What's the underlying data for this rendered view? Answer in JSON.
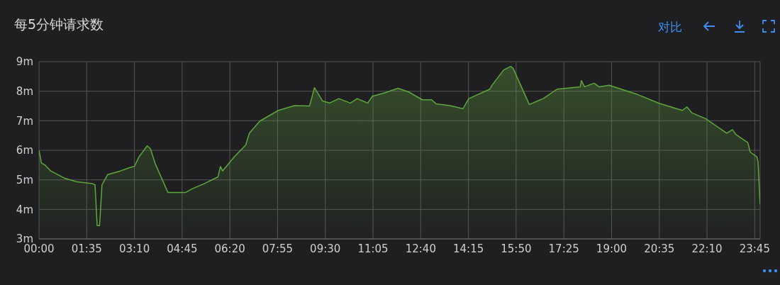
{
  "chart_data": {
    "type": "area",
    "title": "每5分钟请求数",
    "annotations": [
      "对比"
    ],
    "x": [
      0,
      0.08,
      0.2,
      0.39,
      0.86,
      1.24,
      1.78,
      1.86,
      1.93,
      2.01,
      2.09,
      2.28,
      2.7,
      2.97,
      3.17,
      3.32,
      3.59,
      3.7,
      3.86,
      4.28,
      4.86,
      5.09,
      5.48,
      5.94,
      6.02,
      6.09,
      6.48,
      6.86,
      6.98,
      7.33,
      7.94,
      8.48,
      8.98,
      9.14,
      9.41,
      9.64,
      9.95,
      10.33,
      10.56,
      10.91,
      11.06,
      11.49,
      11.91,
      12.26,
      12.72,
      13.03,
      13.18,
      13.64,
      14.07,
      14.26,
      14.96,
      15.03,
      15.42,
      15.65,
      15.73,
      16.27,
      16.73,
      17.19,
      17.96,
      18.0,
      18.1,
      18.42,
      18.58,
      18.92,
      19.19,
      19.81,
      20.58,
      21.35,
      21.5,
      21.66,
      22.12,
      22.82,
      23.01,
      23.13,
      23.52,
      23.6,
      23.82,
      23.86,
      23.93
    ],
    "series": [
      {
        "color": "#5fa63e",
        "values": [
          6.0,
          5.57,
          5.5,
          5.3,
          5.05,
          4.94,
          4.87,
          4.83,
          3.45,
          3.45,
          4.83,
          5.18,
          5.3,
          5.4,
          5.46,
          5.78,
          6.15,
          6.05,
          5.54,
          4.57,
          4.57,
          4.7,
          4.87,
          5.1,
          5.45,
          5.3,
          5.78,
          6.18,
          6.58,
          6.99,
          7.35,
          7.51,
          7.5,
          8.12,
          7.67,
          7.6,
          7.75,
          7.6,
          7.75,
          7.6,
          7.83,
          7.95,
          8.1,
          7.98,
          7.71,
          7.71,
          7.57,
          7.51,
          7.41,
          7.75,
          8.07,
          8.2,
          8.72,
          8.84,
          8.78,
          7.55,
          7.75,
          8.07,
          8.15,
          8.36,
          8.15,
          8.27,
          8.15,
          8.2,
          8.11,
          7.91,
          7.59,
          7.35,
          7.47,
          7.27,
          7.07,
          6.58,
          6.7,
          6.53,
          6.26,
          5.94,
          5.78,
          5.62,
          4.17
        ]
      }
    ],
    "xlim": [
      0,
      23.93
    ],
    "xticks": [
      {
        "value": 0,
        "label": "00:00"
      },
      {
        "value": 1.5833,
        "label": "01:35"
      },
      {
        "value": 3.1667,
        "label": "03:10"
      },
      {
        "value": 4.75,
        "label": "04:45"
      },
      {
        "value": 6.3333,
        "label": "06:20"
      },
      {
        "value": 7.9167,
        "label": "07:55"
      },
      {
        "value": 9.5,
        "label": "09:30"
      },
      {
        "value": 11.0833,
        "label": "11:05"
      },
      {
        "value": 12.6667,
        "label": "12:40"
      },
      {
        "value": 14.25,
        "label": "14:15"
      },
      {
        "value": 15.8333,
        "label": "15:50"
      },
      {
        "value": 17.4167,
        "label": "17:25"
      },
      {
        "value": 19,
        "label": "19:00"
      },
      {
        "value": 20.5833,
        "label": "20:35"
      },
      {
        "value": 22.1667,
        "label": "22:10"
      },
      {
        "value": 23.75,
        "label": "23:45"
      }
    ],
    "ylim": [
      3,
      9
    ],
    "yticks": [
      {
        "value": 3,
        "label": "3m"
      },
      {
        "value": 4,
        "label": "4m"
      },
      {
        "value": 5,
        "label": "5m"
      },
      {
        "value": 6,
        "label": "6m"
      },
      {
        "value": 7,
        "label": "7m"
      },
      {
        "value": 8,
        "label": "8m"
      },
      {
        "value": 9,
        "label": "9m"
      }
    ],
    "grid": true,
    "legend": false,
    "marker": "none",
    "line_style": "solid"
  }
}
